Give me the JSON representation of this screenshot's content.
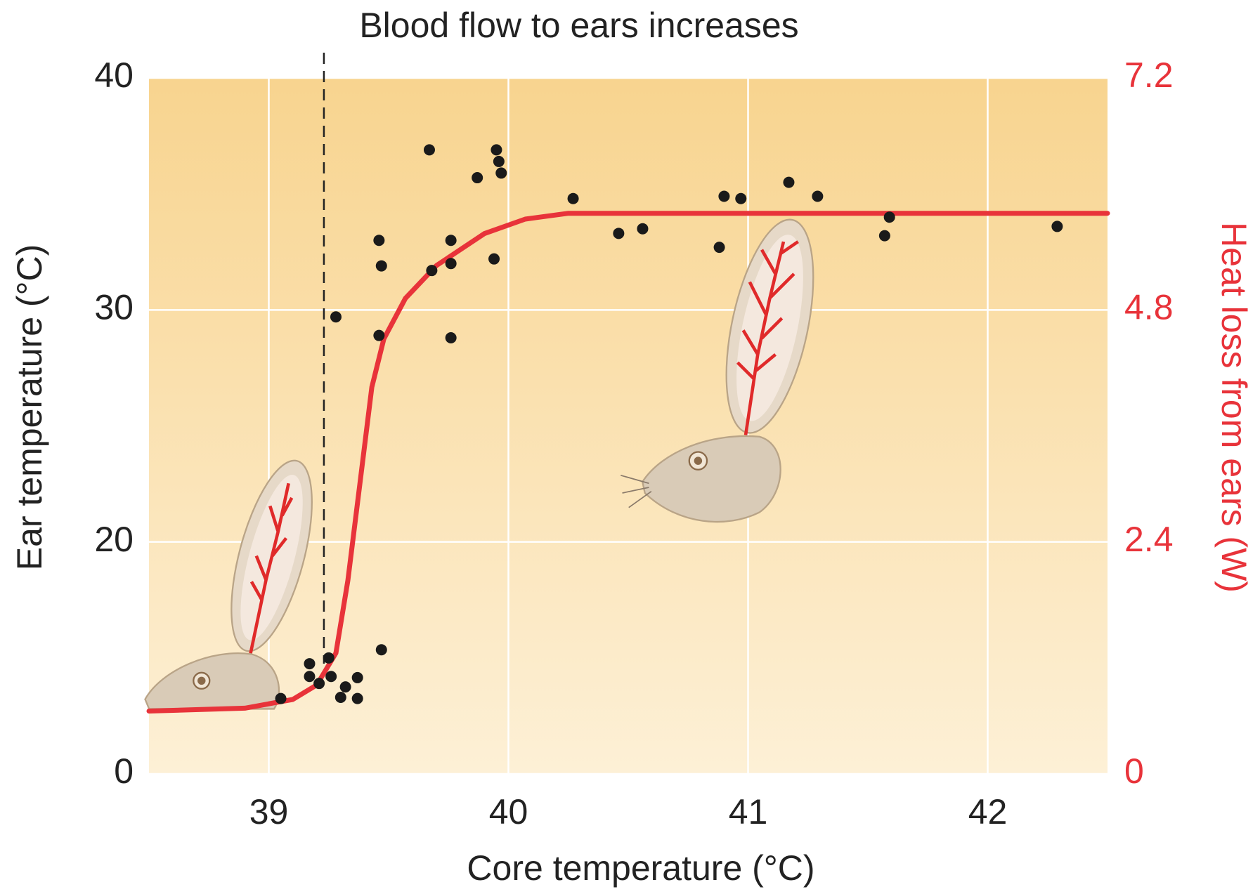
{
  "chart_data": {
    "type": "scatter",
    "annotation": {
      "text": "Blood flow to ears increases",
      "x": 39.23
    },
    "xlabel": "Core temperature (°C)",
    "ylabel": "Ear temperature (°C)",
    "y2label": "Heat loss from ears (W)",
    "xlim": [
      38.5,
      42.5
    ],
    "xticks": [
      39,
      40,
      41,
      42
    ],
    "ylim": [
      0,
      40
    ],
    "yticks": [
      0,
      20,
      30,
      40
    ],
    "y2lim": [
      0,
      7.2
    ],
    "y2ticks": [
      0,
      2.4,
      4.8,
      7.2
    ],
    "y2_color": "#e8333a",
    "grid": true,
    "series": [
      {
        "type": "scatter",
        "color": "#1a1a1a",
        "x": [
          39.67,
          39.95,
          39.96,
          39.97,
          39.87,
          40.27,
          40.9,
          40.97,
          41.17,
          41.29,
          41.59,
          41.57,
          42.29,
          40.46,
          40.56,
          40.88,
          39.46,
          39.47,
          39.76,
          39.76,
          39.68,
          39.94,
          39.28,
          39.46,
          39.76,
          39.47,
          39.17,
          39.25,
          39.17,
          39.21,
          39.26,
          39.37,
          39.32,
          39.3,
          39.37,
          39.05
        ],
        "values": [
          36.9,
          36.9,
          36.4,
          35.9,
          35.7,
          34.8,
          34.9,
          34.8,
          35.5,
          34.9,
          34.0,
          33.2,
          33.6,
          33.3,
          33.5,
          32.7,
          33.0,
          31.9,
          33.0,
          32.0,
          31.7,
          32.2,
          29.7,
          28.9,
          28.8,
          10.7,
          9.5,
          10.0,
          8.4,
          7.8,
          8.4,
          8.3,
          7.5,
          6.6,
          6.5,
          6.5
        ]
      },
      {
        "type": "line",
        "axis": "y2",
        "color": "#e8333a",
        "x": [
          38.5,
          38.9,
          39.1,
          39.2,
          39.28,
          39.33,
          39.38,
          39.43,
          39.48,
          39.57,
          39.7,
          39.9,
          40.07,
          40.25,
          42.5
        ],
        "values": [
          0.65,
          0.68,
          0.77,
          0.92,
          1.25,
          2.0,
          3.0,
          4.0,
          4.5,
          4.92,
          5.26,
          5.59,
          5.74,
          5.8,
          5.8
        ]
      }
    ]
  }
}
